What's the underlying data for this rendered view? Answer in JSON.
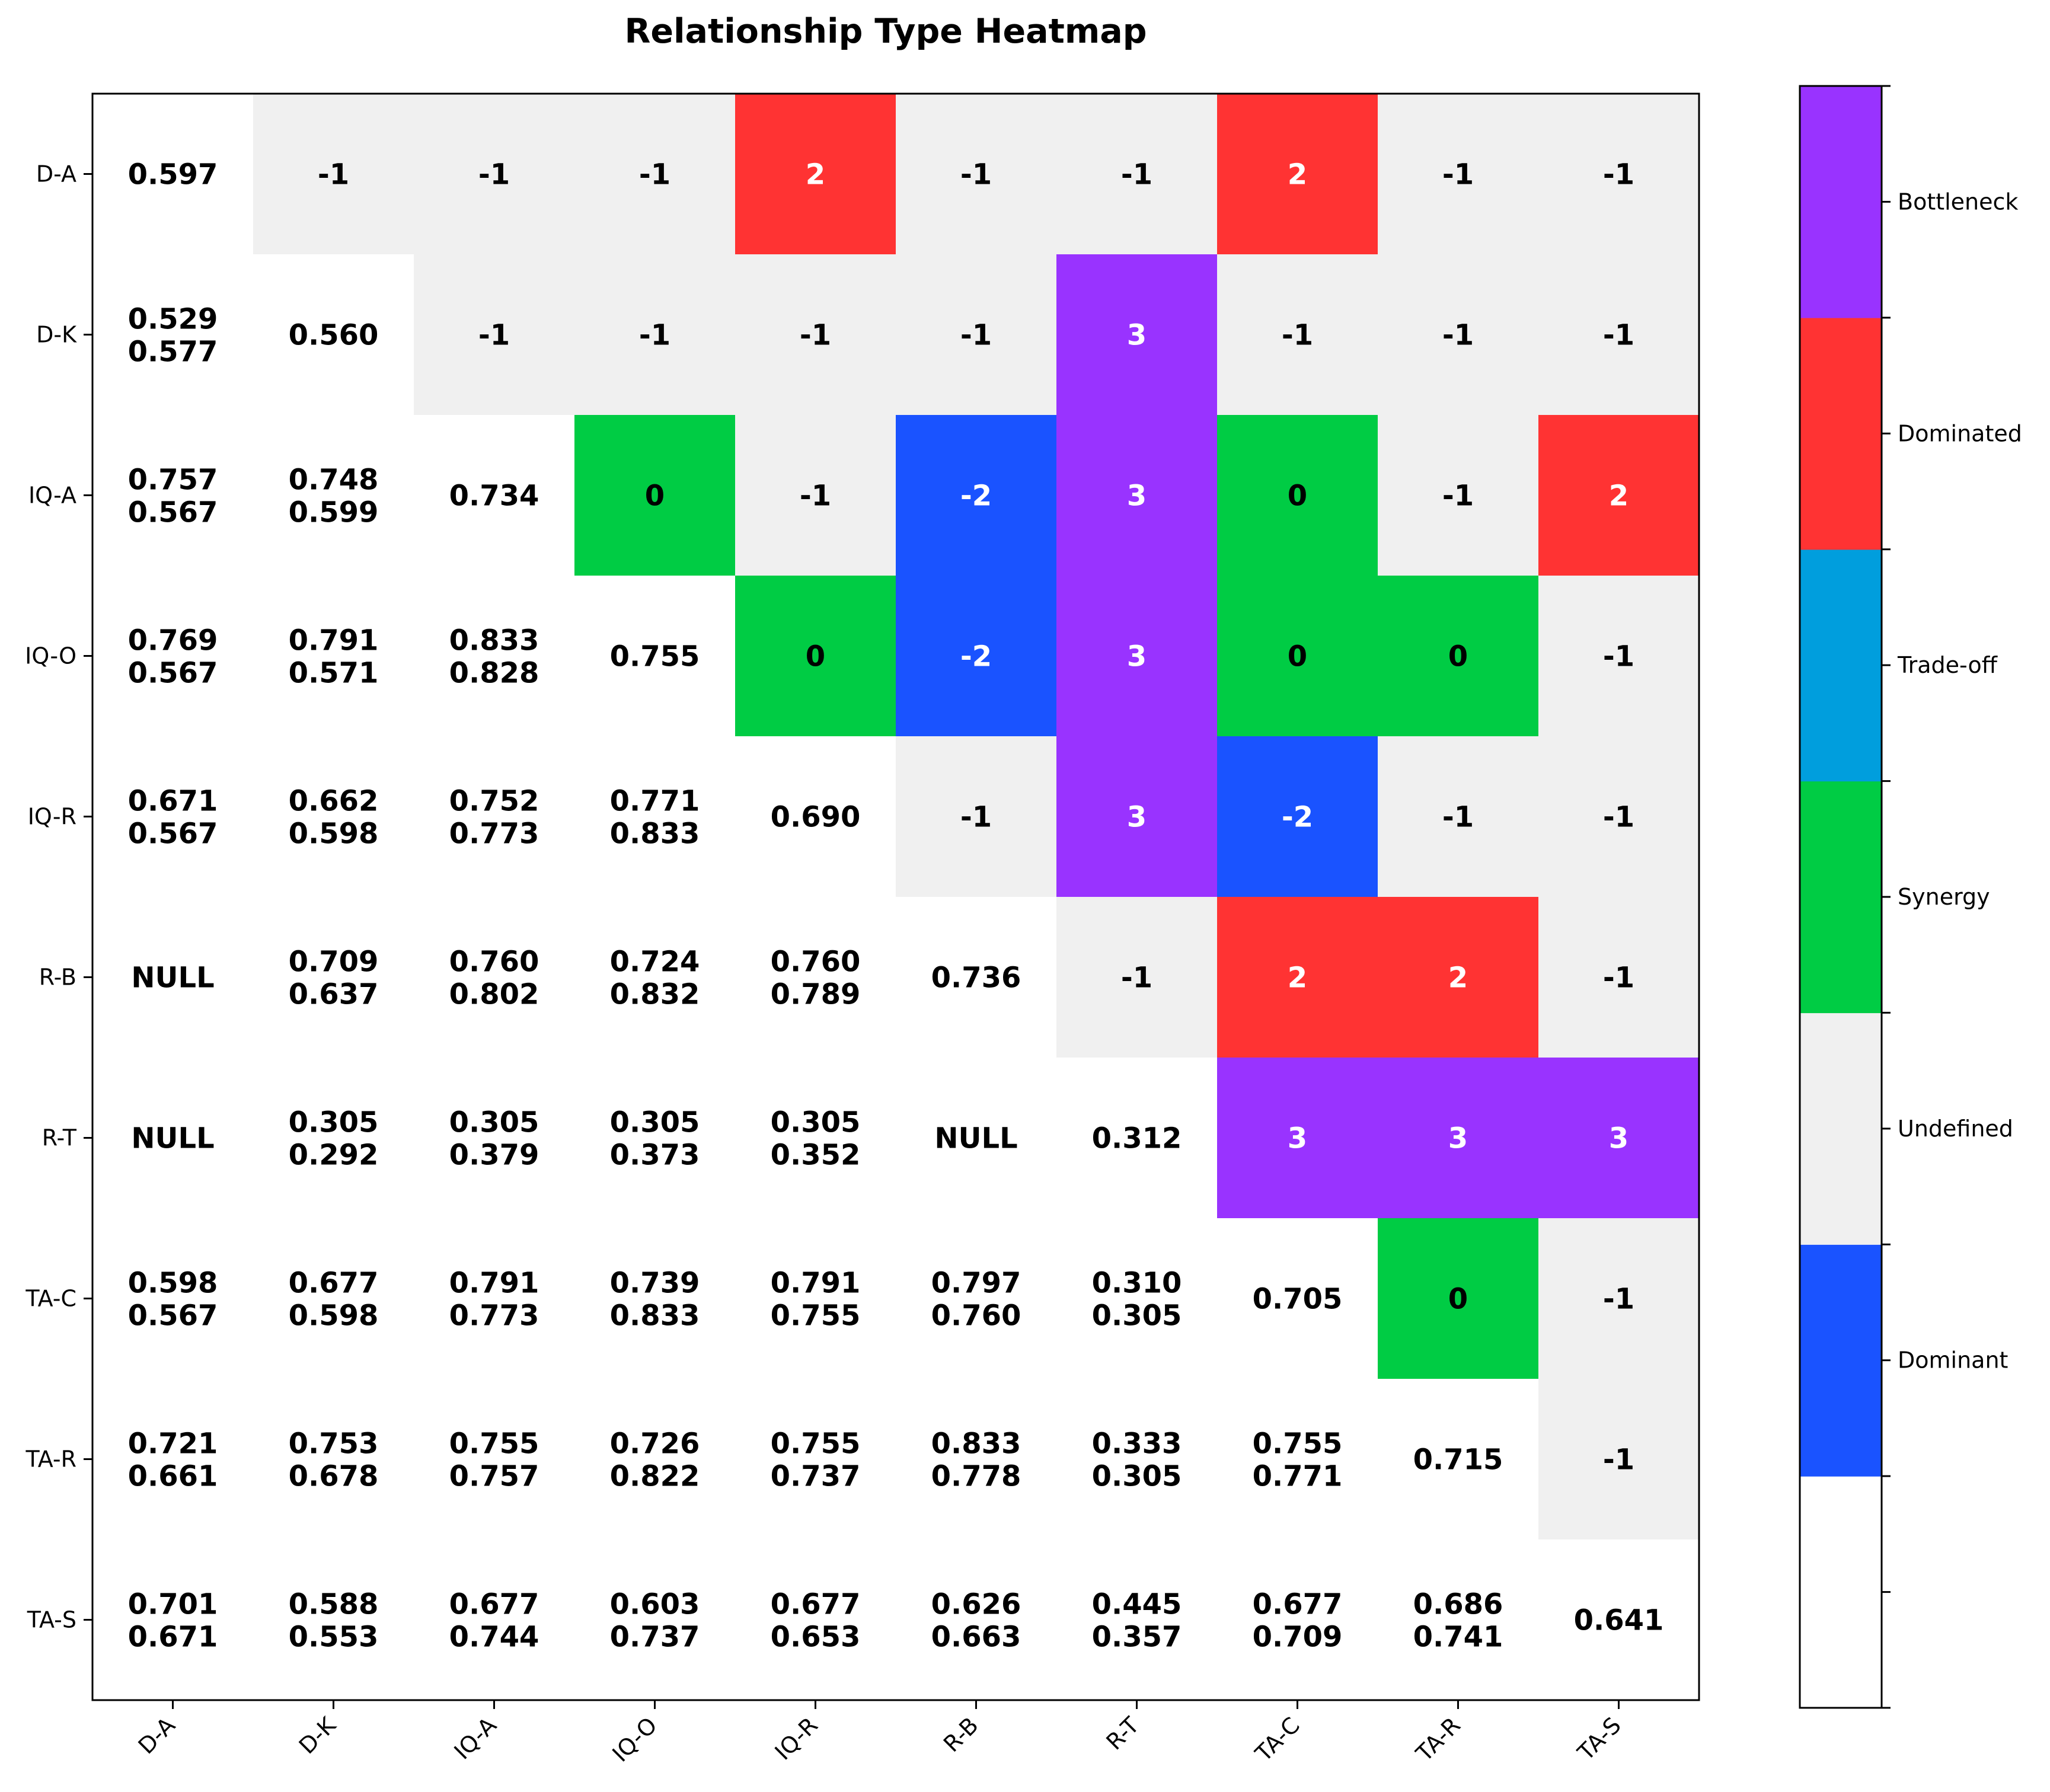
{
  "chart_data": {
    "type": "heatmap",
    "title": "Relationship Type Heatmap",
    "xlabel": "",
    "ylabel": "",
    "categories": [
      "D-A",
      "D-K",
      "IQ-A",
      "IQ-O",
      "IQ-R",
      "R-B",
      "R-T",
      "TA-C",
      "TA-R",
      "TA-S"
    ],
    "grid": false,
    "colorbar": {
      "position": "right",
      "levels": [
        {
          "code": -3,
          "label": "",
          "color": "#ffffff"
        },
        {
          "code": -2,
          "label": "Dominant",
          "color": "#1a53ff"
        },
        {
          "code": -1,
          "label": "Undefined",
          "color": "#f0f0f0"
        },
        {
          "code": 0,
          "label": "Synergy",
          "color": "#00cc44"
        },
        {
          "code": 1,
          "label": "Trade-off",
          "color": "#009edd"
        },
        {
          "code": 2,
          "label": "Dominated",
          "color": "#ff3333"
        },
        {
          "code": 3,
          "label": "Bottleneck",
          "color": "#9933ff"
        }
      ]
    },
    "cells": [
      [
        "0.597",
        "-1",
        "-1",
        "-1",
        "2",
        "-1",
        "-1",
        "2",
        "-1",
        "-1"
      ],
      [
        "0.529\n0.577",
        "0.560",
        "-1",
        "-1",
        "-1",
        "-1",
        "3",
        "-1",
        "-1",
        "-1"
      ],
      [
        "0.757\n0.567",
        "0.748\n0.599",
        "0.734",
        "0",
        "-1",
        "-2",
        "3",
        "0",
        "-1",
        "2"
      ],
      [
        "0.769\n0.567",
        "0.791\n0.571",
        "0.833\n0.828",
        "0.755",
        "0",
        "-2",
        "3",
        "0",
        "0",
        "-1"
      ],
      [
        "0.671\n0.567",
        "0.662\n0.598",
        "0.752\n0.773",
        "0.771\n0.833",
        "0.690",
        "-1",
        "3",
        "-2",
        "-1",
        "-1"
      ],
      [
        "NULL",
        "0.709\n0.637",
        "0.760\n0.802",
        "0.724\n0.832",
        "0.760\n0.789",
        "0.736",
        "-1",
        "2",
        "2",
        "-1"
      ],
      [
        "NULL",
        "0.305\n0.292",
        "0.305\n0.379",
        "0.305\n0.373",
        "0.305\n0.352",
        "NULL",
        "0.312",
        "3",
        "3",
        "3"
      ],
      [
        "0.598\n0.567",
        "0.677\n0.598",
        "0.791\n0.773",
        "0.739\n0.833",
        "0.791\n0.755",
        "0.797\n0.760",
        "0.310\n0.305",
        "0.705",
        "0",
        "-1"
      ],
      [
        "0.721\n0.661",
        "0.753\n0.678",
        "0.755\n0.757",
        "0.726\n0.822",
        "0.755\n0.737",
        "0.833\n0.778",
        "0.333\n0.305",
        "0.755\n0.771",
        "0.715",
        "-1"
      ],
      [
        "0.701\n0.671",
        "0.588\n0.553",
        "0.677\n0.744",
        "0.603\n0.737",
        "0.677\n0.653",
        "0.626\n0.663",
        "0.445\n0.357",
        "0.677\n0.709",
        "0.686\n0.741",
        "0.641"
      ]
    ]
  }
}
